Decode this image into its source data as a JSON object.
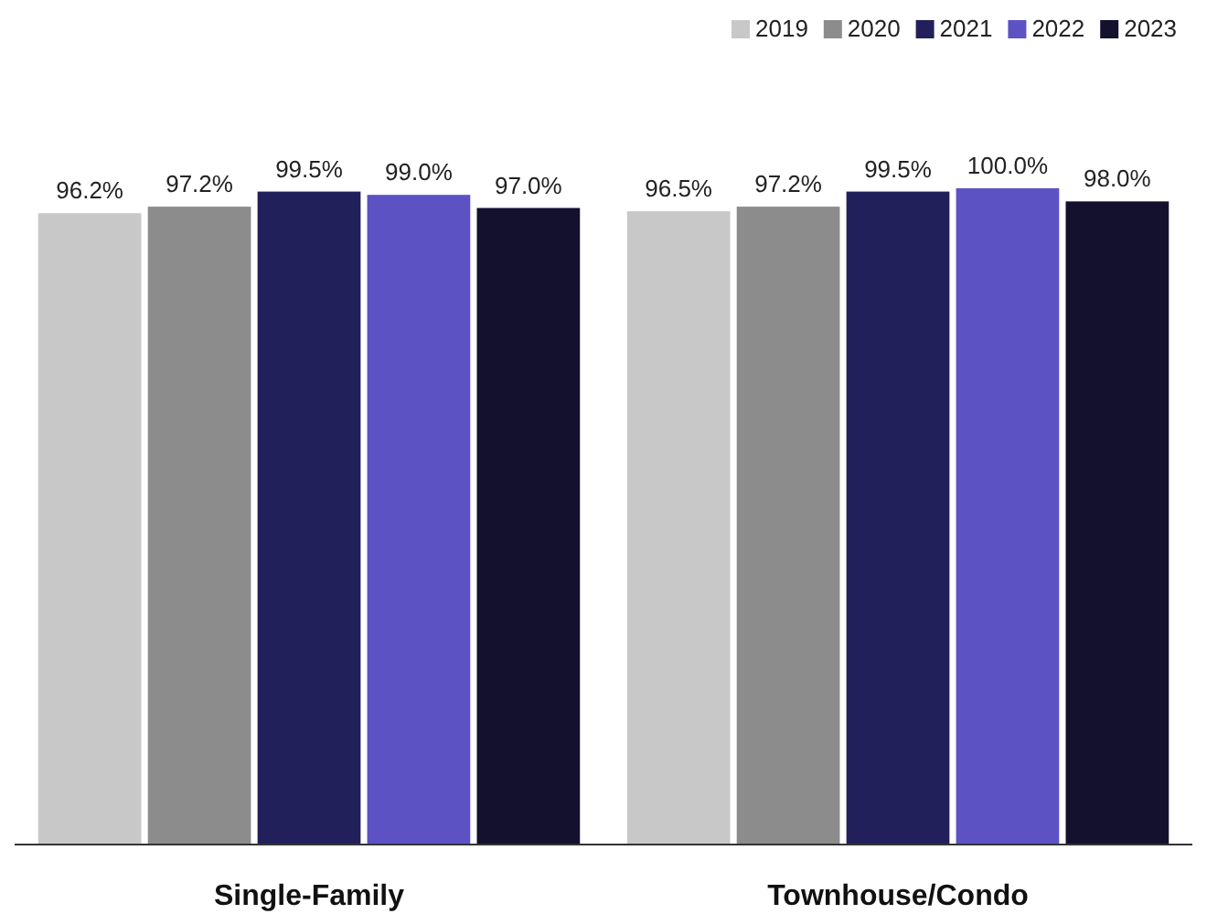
{
  "chart_data": {
    "type": "bar",
    "categories": [
      "Single-Family",
      "Townhouse/Condo"
    ],
    "series": [
      {
        "name": "2019",
        "color": "#c8c8c8",
        "values": [
          96.2,
          96.5
        ],
        "value_labels": [
          "96.2%",
          "96.5%"
        ]
      },
      {
        "name": "2020",
        "color": "#8c8c8c",
        "values": [
          97.2,
          97.2
        ],
        "value_labels": [
          "97.2%",
          "97.2%"
        ]
      },
      {
        "name": "2021",
        "color": "#22205a",
        "values": [
          99.5,
          99.5
        ],
        "value_labels": [
          "99.5%",
          "99.5%"
        ]
      },
      {
        "name": "2022",
        "color": "#5d52c4",
        "values": [
          99.0,
          100.0
        ],
        "value_labels": [
          "99.0%",
          "100.0%"
        ]
      },
      {
        "name": "2023",
        "color": "#13112e",
        "values": [
          97.0,
          98.0
        ],
        "value_labels": [
          "97.0%",
          "98.0%"
        ]
      }
    ],
    "legend": "top right"
  }
}
